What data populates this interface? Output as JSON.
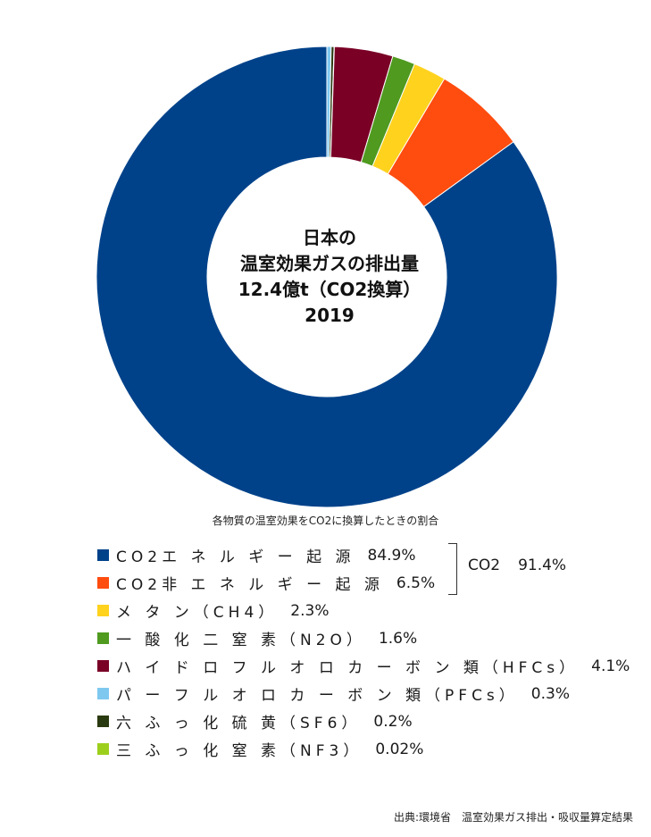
{
  "chart_data": {
    "type": "donut",
    "title_lines": [
      "日本の",
      "温室効果ガスの排出量",
      "12.4億t（CO2換算）",
      "2019"
    ],
    "subtitle": "各物質の温室効果をCO2に換算したときの割合",
    "series": [
      {
        "name": "CO2エネルギー起源",
        "display_label": "CO2エ ネ ル ギ ー 起 源",
        "value": 84.9,
        "value_label": "84.9%",
        "color": "#00428a"
      },
      {
        "name": "CO2非エネルギー起源",
        "display_label": "CO2非 エ ネ ル ギ ー 起 源",
        "value": 6.5,
        "value_label": "6.5%",
        "color": "#ff4c0f"
      },
      {
        "name": "メタン(CH4)",
        "display_label": "メ タ ン（CH4）",
        "value": 2.3,
        "value_label": "2.3%",
        "color": "#ffd21e"
      },
      {
        "name": "一酸化二窒素(N2O)",
        "display_label": "一 酸 化 二 窒 素（N2O）",
        "value": 1.6,
        "value_label": "1.6%",
        "color": "#4f9a1f"
      },
      {
        "name": "ハイドロフルオロカーボン類(HFCs)",
        "display_label": "ハ イ ド ロ フ ル オ ロ カ ー ボ ン 類（HFCs）",
        "value": 4.1,
        "value_label": "4.1%",
        "color": "#7a0026"
      },
      {
        "name": "パーフルオロカーボン類(PFCs)",
        "display_label": "パ ー フ ル オ ロ カ ー ボ ン 類（PFCs）",
        "value": 0.3,
        "value_label": "0.3%",
        "color": "#7ec8f0"
      },
      {
        "name": "六ふっ化硫黄(SF6)",
        "display_label": "六 ふ っ 化 硫 黄（SF6）",
        "value": 0.2,
        "value_label": "0.2%",
        "color": "#2a3a10"
      },
      {
        "name": "三ふっ化窒素(NF3)",
        "display_label": "三 ふ っ 化 窒 素（NF3）",
        "value": 0.02,
        "value_label": "0.02%",
        "color": "#9ccf1c"
      }
    ],
    "group": {
      "label": "CO2",
      "value_label": "91.4%",
      "members": [
        "CO2エネルギー起源",
        "CO2非エネルギー起源"
      ]
    },
    "source": "出典:環境省　温室効果ガス排出・吸収量算定結果"
  }
}
